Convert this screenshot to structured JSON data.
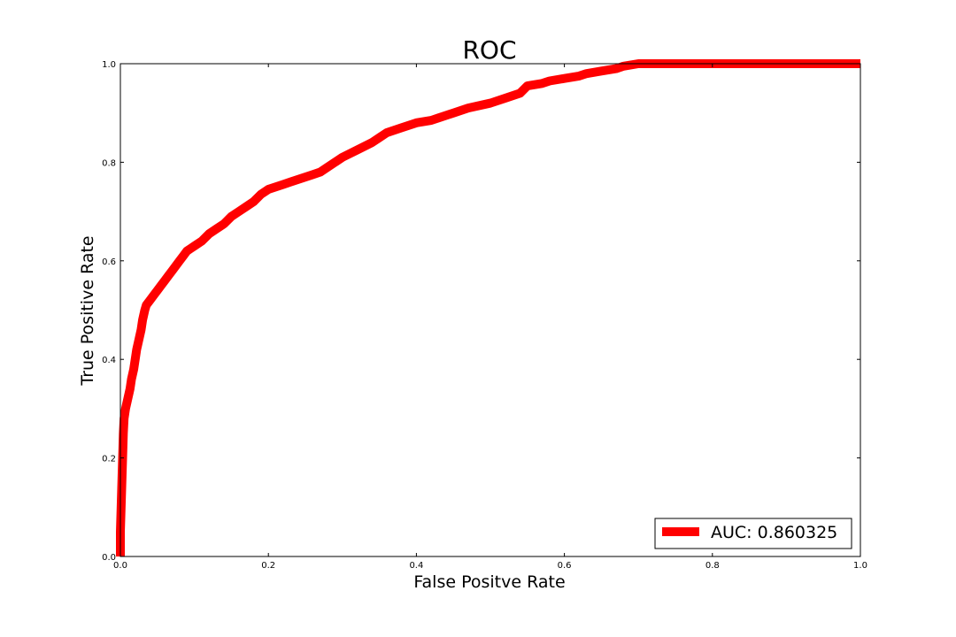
{
  "chart_data": {
    "type": "line",
    "title": "ROC",
    "xlabel": "False Positve Rate",
    "ylabel": "True Positive Rate",
    "xlim": [
      0.0,
      1.0
    ],
    "ylim": [
      0.0,
      1.0
    ],
    "x_ticks": [
      "0.0",
      "0.2",
      "0.4",
      "0.6",
      "0.8",
      "1.0"
    ],
    "y_ticks": [
      "0.0",
      "0.2",
      "0.4",
      "0.6",
      "0.8",
      "1.0"
    ],
    "grid": false,
    "legend_position": "lower-right",
    "series": [
      {
        "name": "AUC: 0.860325",
        "color": "#ff0000",
        "x": [
          0.0,
          0.0,
          0.002,
          0.003,
          0.004,
          0.005,
          0.007,
          0.01,
          0.013,
          0.015,
          0.018,
          0.02,
          0.022,
          0.025,
          0.028,
          0.03,
          0.033,
          0.035,
          0.04,
          0.045,
          0.05,
          0.055,
          0.06,
          0.065,
          0.07,
          0.075,
          0.08,
          0.085,
          0.09,
          0.095,
          0.1,
          0.11,
          0.12,
          0.13,
          0.14,
          0.15,
          0.16,
          0.17,
          0.18,
          0.19,
          0.2,
          0.21,
          0.22,
          0.23,
          0.24,
          0.25,
          0.26,
          0.27,
          0.28,
          0.3,
          0.32,
          0.34,
          0.35,
          0.36,
          0.38,
          0.4,
          0.42,
          0.43,
          0.45,
          0.47,
          0.5,
          0.52,
          0.54,
          0.55,
          0.57,
          0.58,
          0.6,
          0.62,
          0.63,
          0.65,
          0.67,
          0.68,
          0.7,
          0.72,
          0.75,
          0.8,
          0.9,
          1.0
        ],
        "y": [
          0.0,
          0.05,
          0.15,
          0.2,
          0.25,
          0.28,
          0.3,
          0.32,
          0.34,
          0.36,
          0.38,
          0.4,
          0.42,
          0.44,
          0.46,
          0.48,
          0.5,
          0.51,
          0.52,
          0.53,
          0.54,
          0.55,
          0.56,
          0.57,
          0.58,
          0.59,
          0.6,
          0.61,
          0.62,
          0.625,
          0.63,
          0.64,
          0.655,
          0.665,
          0.675,
          0.69,
          0.7,
          0.71,
          0.72,
          0.735,
          0.745,
          0.75,
          0.755,
          0.76,
          0.765,
          0.77,
          0.775,
          0.78,
          0.79,
          0.81,
          0.825,
          0.84,
          0.85,
          0.86,
          0.87,
          0.88,
          0.885,
          0.89,
          0.9,
          0.91,
          0.92,
          0.93,
          0.94,
          0.955,
          0.96,
          0.965,
          0.97,
          0.975,
          0.98,
          0.985,
          0.99,
          0.995,
          1.0,
          1.0,
          1.0,
          1.0,
          1.0,
          1.0
        ]
      }
    ]
  }
}
